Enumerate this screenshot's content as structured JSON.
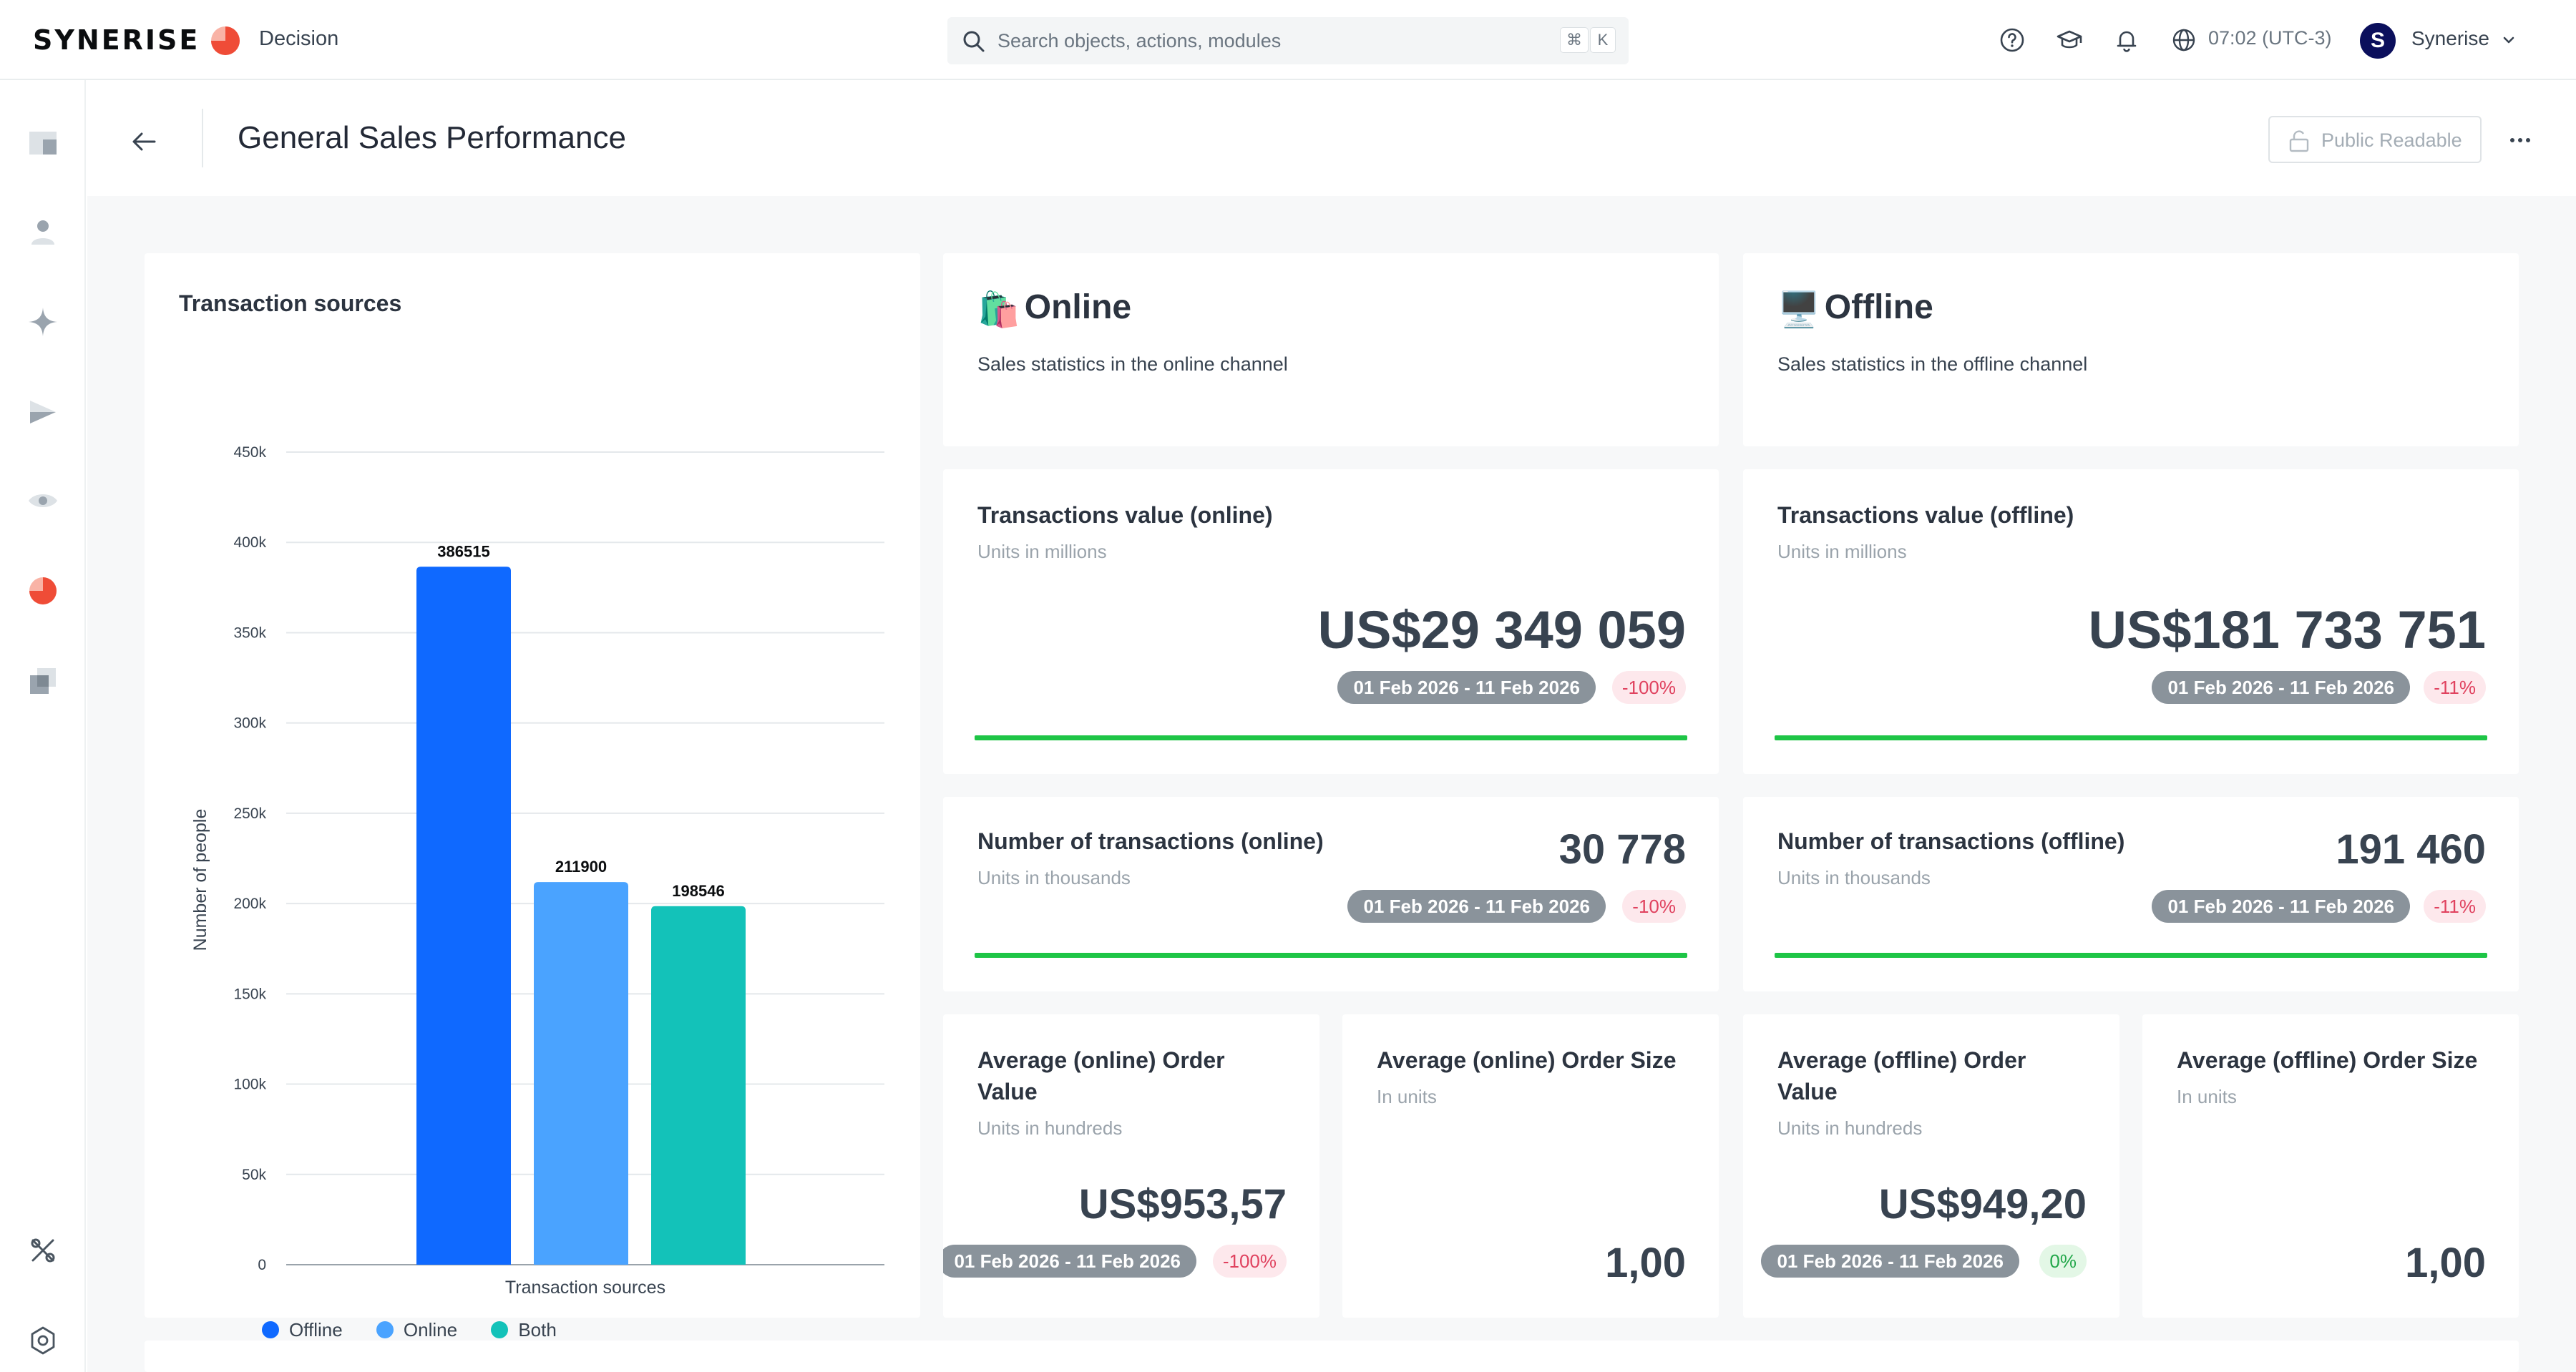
{
  "app": {
    "logo": "SYNERISE",
    "module": "Decision",
    "search_placeholder": "Search objects, actions, modules",
    "search_kbd": [
      "⌘",
      "K"
    ],
    "time": "07:02 (UTC-3)",
    "user_initial": "S",
    "user_name": "Synerise"
  },
  "header": {
    "title": "General Sales Performance",
    "public_label": "Public Readable"
  },
  "chart_card": {
    "title": "Transaction sources"
  },
  "chart_data": {
    "type": "bar",
    "title": "Transaction sources",
    "xlabel": "Transaction sources",
    "ylabel": "Number of people",
    "ylim": [
      0,
      450000
    ],
    "yticks": [
      "0",
      "50k",
      "100k",
      "150k",
      "200k",
      "250k",
      "300k",
      "350k",
      "400k",
      "450k"
    ],
    "series": [
      {
        "name": "Offline",
        "values": [
          386515
        ],
        "color": "#0f69ff"
      },
      {
        "name": "Online",
        "values": [
          211900
        ],
        "color": "#4aa3ff"
      },
      {
        "name": "Both",
        "values": [
          198546
        ],
        "color": "#13c2b9"
      }
    ],
    "legend_position": "bottom-left",
    "grid": true
  },
  "online": {
    "emoji": "🛍️",
    "title": "Online",
    "subtitle": "Sales statistics in the online channel"
  },
  "offline": {
    "emoji": "🖥️",
    "title": "Offline",
    "subtitle": "Sales statistics in the offline channel"
  },
  "kpis": {
    "tv_online": {
      "title": "Transactions value (online)",
      "sub": "Units in millions",
      "value": "US$29 349 059",
      "date": "01 Feb 2026 - 11 Feb 2026",
      "pct": "-100%"
    },
    "tv_offline": {
      "title": "Transactions value (offline)",
      "sub": "Units in millions",
      "value": "US$181 733 751",
      "date": "01 Feb 2026 - 11 Feb 2026",
      "pct": "-11%"
    },
    "nt_online": {
      "title": "Number of transactions (online)",
      "sub": "Units in thousands",
      "value": "30 778",
      "date": "01 Feb 2026 - 11 Feb 2026",
      "pct": "-10%"
    },
    "nt_offline": {
      "title": "Number of transactions (offline)",
      "sub": "Units in thousands",
      "value": "191 460",
      "date": "01 Feb 2026 - 11 Feb 2026",
      "pct": "-11%"
    },
    "aov_online": {
      "title_1": "Average (online) Order",
      "title_2": "Value",
      "sub": "Units in hundreds",
      "value": "US$953,57",
      "date": "01 Feb 2026 - 11 Feb 2026",
      "pct": "-100%"
    },
    "aos_online": {
      "title": "Average (online) Order Size",
      "sub": "In units",
      "value": "1,00"
    },
    "aov_offline": {
      "title_1": "Average (offline) Order",
      "title_2": "Value",
      "sub": "Units in hundreds",
      "value": "US$949,20",
      "date": "01 Feb 2026 - 11 Feb 2026",
      "pct": "0%"
    },
    "aos_offline": {
      "title": "Average (offline) Order Size",
      "sub": "In units",
      "value": "1,00"
    }
  }
}
